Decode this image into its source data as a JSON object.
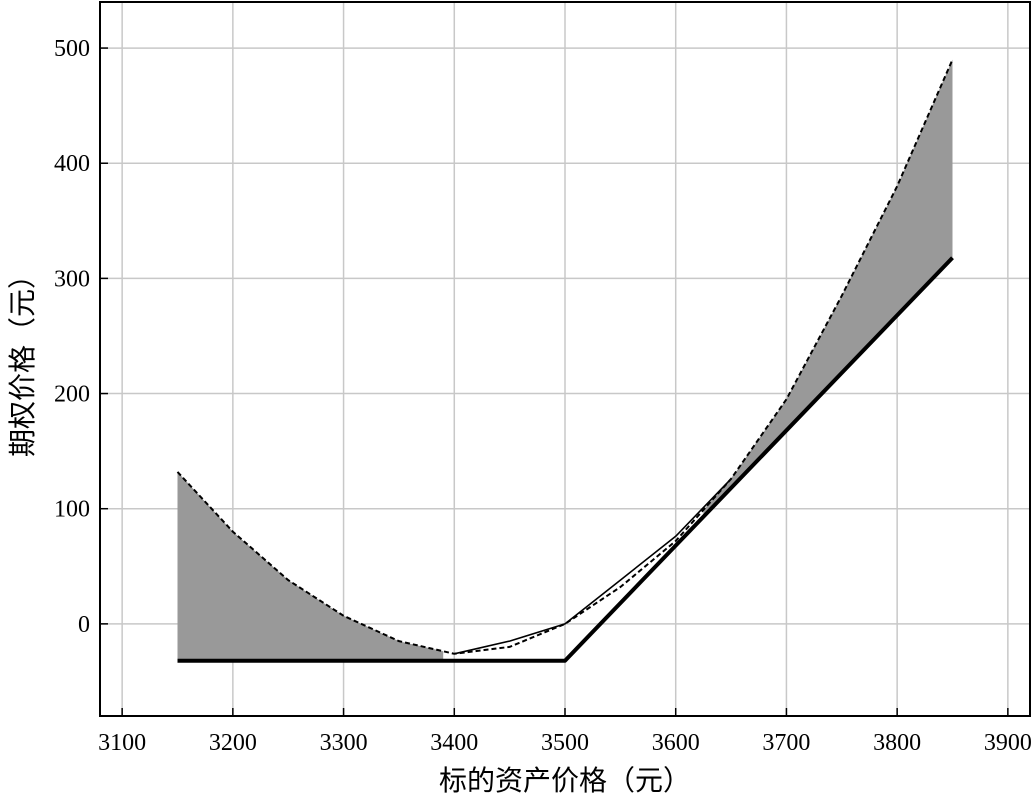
{
  "chart_data": {
    "type": "line",
    "xlabel": "标的资产价格（元）",
    "ylabel": "期权价格（元）",
    "xlim": [
      3080,
      3920
    ],
    "ylim": [
      -80,
      540
    ],
    "xticks": [
      3100,
      3200,
      3300,
      3400,
      3500,
      3600,
      3700,
      3800,
      3900
    ],
    "yticks": [
      0,
      100,
      200,
      300,
      400,
      500
    ],
    "grid": true,
    "colors": {
      "fill": "#999999",
      "line": "#000000",
      "grid": "#c8c8c8"
    },
    "series": [
      {
        "style": "solid-thick",
        "x": [
          3150,
          3500,
          3850
        ],
        "y": [
          -32,
          -32,
          318
        ]
      },
      {
        "style": "dashed",
        "x": [
          3150,
          3200,
          3250,
          3300,
          3350,
          3400,
          3450,
          3500,
          3550,
          3600,
          3650,
          3700,
          3750,
          3800,
          3850
        ],
        "y": [
          132,
          80,
          38,
          7,
          -15,
          -26,
          -20,
          0,
          32,
          72,
          126,
          195,
          285,
          380,
          490
        ]
      },
      {
        "style": "solid-thin",
        "x": [
          3400,
          3450,
          3500,
          3550,
          3600,
          3650
        ],
        "y": [
          -26,
          -15,
          0,
          38,
          76,
          126
        ]
      }
    ],
    "shaded_regions": [
      {
        "between": [
          "dashed",
          "solid-thick"
        ],
        "x_range": [
          3150,
          3390
        ]
      },
      {
        "between": [
          "dashed",
          "solid-thick"
        ],
        "x_range": [
          3625,
          3850
        ]
      }
    ]
  }
}
